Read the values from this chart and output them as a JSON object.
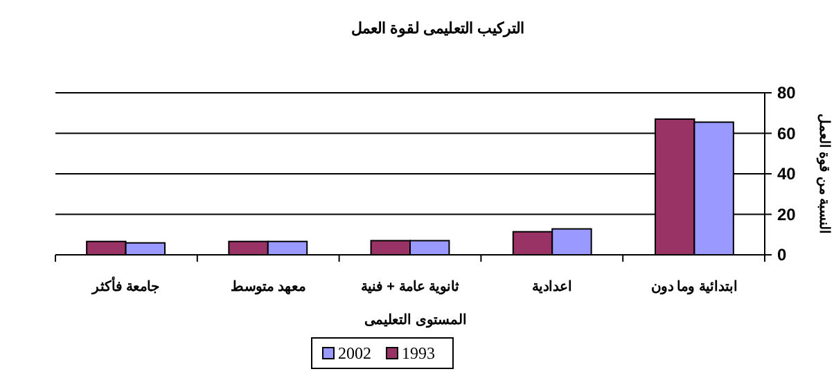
{
  "chart_data": {
    "type": "bar",
    "title": "التركيب التعليمى لقوة العمل",
    "xlabel": "المستوى التعليمى",
    "ylabel": "النسبة من قوة العمل",
    "categories": [
      "جامعة فأكثر",
      "معهد متوسط",
      "ثانوية عامة + فنية",
      "اعدادية",
      "ابتدائية وما دون"
    ],
    "series": [
      {
        "name": "1993",
        "color": "#993366",
        "values": [
          6.6,
          6.6,
          7,
          11.4,
          67
        ]
      },
      {
        "name": "2002",
        "color": "#9999ff",
        "values": [
          5.9,
          6.6,
          7,
          12.8,
          65.5
        ]
      }
    ],
    "ylim": [
      0,
      80
    ],
    "yticks": [
      0,
      20,
      40,
      60,
      80
    ],
    "grid": "y",
    "legend": "bottom"
  }
}
